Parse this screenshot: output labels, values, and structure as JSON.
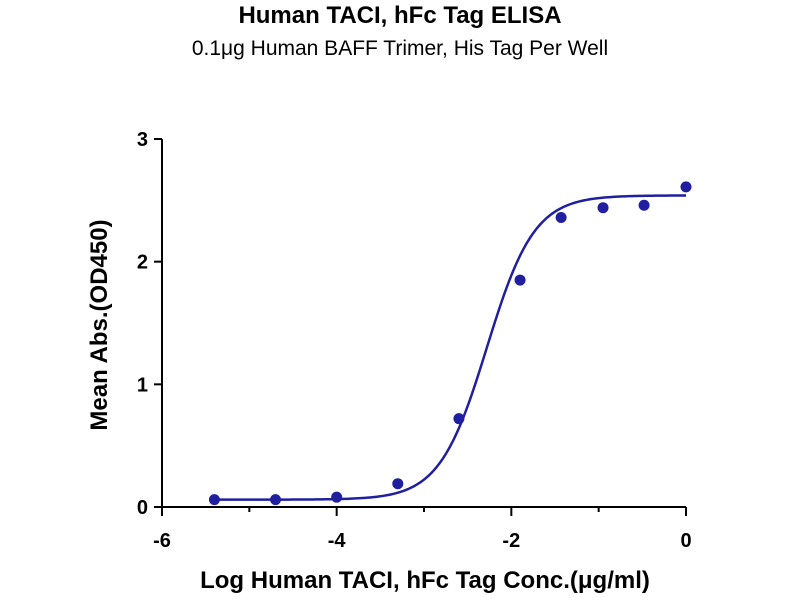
{
  "chart_data": {
    "type": "scatter",
    "title": "Human TACI, hFc Tag ELISA",
    "subtitle": "0.1μg Human BAFF Trimer, His Tag Per Well",
    "xlabel": "Log Human TACI, hFc Tag Conc.(μg/ml)",
    "ylabel": "Mean Abs.(OD450)",
    "xlim": [
      -6,
      0
    ],
    "ylim": [
      0,
      3
    ],
    "x_ticks": [
      "-6",
      "-4",
      "-2",
      "0"
    ],
    "y_ticks": [
      "0",
      "1",
      "2",
      "3"
    ],
    "grid": false,
    "colors": {
      "series": "#1f1fa0",
      "axis": "#000000"
    },
    "series": [
      {
        "x": [
          -5.4,
          -4.7,
          -4.0,
          -3.3,
          -2.6,
          -1.9,
          -1.43,
          -0.95,
          -0.48,
          0.0
        ],
        "y": [
          0.06,
          0.06,
          0.08,
          0.19,
          0.72,
          1.85,
          2.36,
          2.44,
          2.46,
          2.61
        ]
      }
    ],
    "fit": {
      "type": "4PL",
      "bottom": 0.06,
      "top": 2.54,
      "logEC50": -2.28,
      "hill": 1.6
    }
  }
}
